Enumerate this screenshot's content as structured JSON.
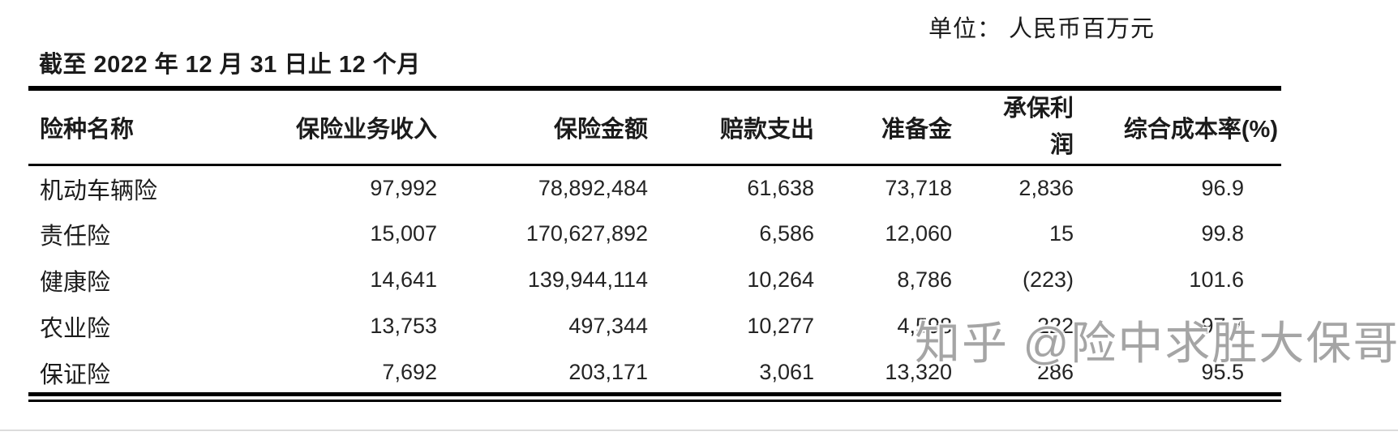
{
  "page": {
    "unit_label": "单位： 人民币百万元",
    "period_title": "截至 2022 年 12 月 31 日止 12 个月"
  },
  "table": {
    "headers": [
      {
        "label": "险种名称"
      },
      {
        "label": "保险业务收入"
      },
      {
        "label": "保险金额"
      },
      {
        "label": "赔款支出"
      },
      {
        "label": "准备金"
      },
      {
        "label": "承保利润"
      },
      {
        "label": "综合成本率(%)"
      }
    ],
    "rows": [
      [
        "机动车辆险",
        "97,992",
        "78,892,484",
        "61,638",
        "73,718",
        "2,836",
        "96.9"
      ],
      [
        "责任险",
        "15,007",
        "170,627,892",
        "6,586",
        "12,060",
        "15",
        "99.8"
      ],
      [
        "健康险",
        "14,641",
        "139,944,114",
        "10,264",
        "8,786",
        "(223)",
        "101.6"
      ],
      [
        "农业险",
        "13,753",
        "497,344",
        "10,277",
        "4,598",
        "222",
        "97.7"
      ],
      [
        "保证险",
        "7,692",
        "203,171",
        "3,061",
        "13,320",
        "286",
        "95.5"
      ]
    ]
  },
  "watermark": {
    "text": "知乎 @险中求胜大保哥",
    "color": "#a5a5a5"
  }
}
